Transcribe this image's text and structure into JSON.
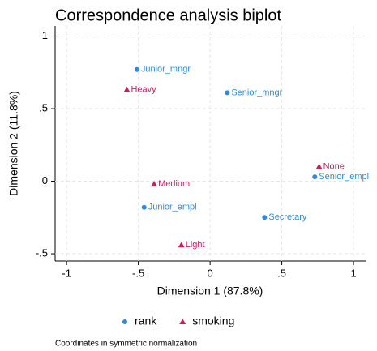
{
  "chart_data": {
    "type": "scatter",
    "title": "Correspondence analysis biplot",
    "x_label": "Dimension 1 (87.8%)",
    "y_label": "Dimension 2 (11.8%)",
    "note": "Coordinates in symmetric normalization",
    "xlim": [
      -1.08,
      1.09
    ],
    "ylim": [
      -0.55,
      1.07
    ],
    "xticks": [
      -1,
      {
        "value": -0.5,
        "label": "-.5"
      },
      0,
      {
        "value": 0.5,
        "label": ".5"
      },
      1
    ],
    "yticks": [
      {
        "value": -0.5,
        "label": "-.5"
      },
      0,
      {
        "value": 0.5,
        "label": ".5"
      },
      1
    ],
    "grid": true,
    "legend": "bottom",
    "series": [
      {
        "name": "rank",
        "color": "#2d8ae0",
        "marker": "circle",
        "labels": [
          "Junior_mngr",
          "Senior_mngr",
          "Senior_empl",
          "Junior_empl",
          "Secretary"
        ],
        "x": [
          -0.51,
          0.12,
          0.73,
          -0.46,
          0.38
        ],
        "y": [
          0.77,
          0.61,
          0.03,
          -0.18,
          -0.25
        ]
      },
      {
        "name": "smoking",
        "color": "#cc1f5a",
        "marker": "triangle",
        "labels": [
          "Heavy",
          "None",
          "Medium",
          "Light"
        ],
        "x": [
          -0.58,
          0.76,
          -0.39,
          -0.2
        ],
        "y": [
          0.63,
          0.1,
          -0.02,
          -0.44
        ]
      }
    ]
  }
}
